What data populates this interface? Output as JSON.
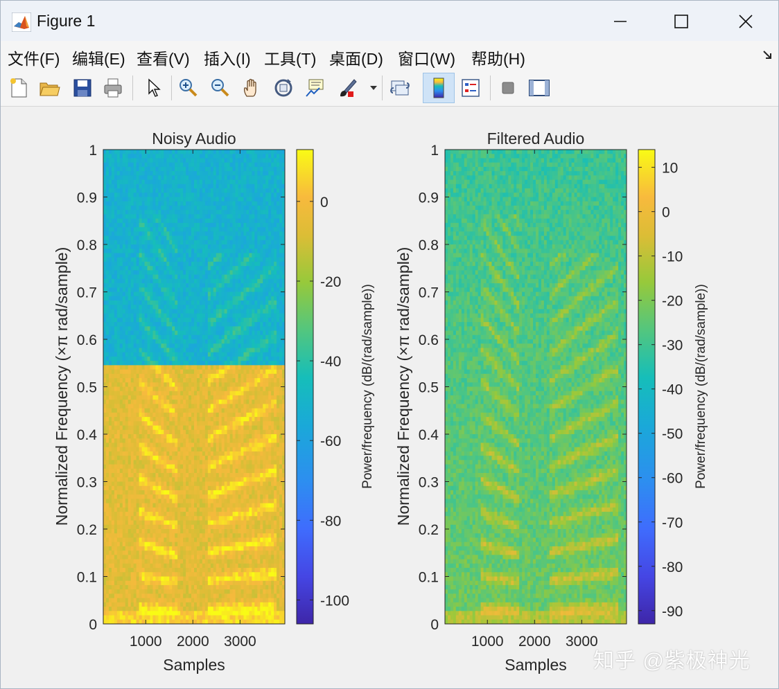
{
  "window": {
    "title": "Figure 1"
  },
  "menu": [
    "文件(F)",
    "编辑(E)",
    "查看(V)",
    "插入(I)",
    "工具(T)",
    "桌面(D)",
    "窗口(W)",
    "帮助(H)"
  ],
  "toolbar": [
    "new-file-icon",
    "open-folder-icon",
    "save-icon",
    "print-icon",
    "pointer-icon",
    "zoom-in-icon",
    "zoom-out-icon",
    "pan-hand-icon",
    "rotate-3d-icon",
    "data-cursor-icon",
    "brush-icon",
    "link-plot-icon",
    "colorbar-icon",
    "legend-icon",
    "hide-plot-tools-icon",
    "show-plot-tools-icon"
  ],
  "watermark": "知乎 @紫极神光",
  "colors": {
    "parula_dark": "#3e26a8",
    "parula_blue": "#2d8ef0",
    "parula_teal": "#16beb9",
    "parula_green": "#97c93b",
    "parula_orange": "#f8ba3d",
    "parula_yellow": "#f9fb15"
  },
  "chart_data": [
    {
      "type": "heatmap",
      "title": "Noisy Audio",
      "xlabel": "Samples",
      "ylabel": "Normalized Frequency  (×π rad/sample)",
      "colorbar_label": "Power/frequency (dB/(rad/sample))",
      "x_ticks": [
        "1000",
        "2000",
        "3000"
      ],
      "x_tick_values": [
        1000,
        2000,
        3000
      ],
      "xlim": [
        100,
        3950
      ],
      "y_ticks": [
        "0",
        "0.1",
        "0.2",
        "0.3",
        "0.4",
        "0.5",
        "0.6",
        "0.7",
        "0.8",
        "0.9",
        "1"
      ],
      "ylim": [
        0,
        1
      ],
      "colorbar_ticks": [
        "0",
        "-20",
        "-40",
        "-60",
        "-80",
        "-100"
      ],
      "colorbar_tick_values": [
        0,
        -20,
        -40,
        -60,
        -80,
        -100
      ],
      "clim": [
        -106,
        13
      ],
      "colormap": "parula",
      "noise_floor_cutoff": 0.55
    },
    {
      "type": "heatmap",
      "title": "Filtered Audio",
      "xlabel": "Samples",
      "ylabel": "Normalized Frequency  (×π rad/sample)",
      "colorbar_label": "Power/frequency (dB/(rad/sample))",
      "x_ticks": [
        "1000",
        "2000",
        "3000"
      ],
      "x_tick_values": [
        1000,
        2000,
        3000
      ],
      "xlim": [
        100,
        3950
      ],
      "y_ticks": [
        "0",
        "0.1",
        "0.2",
        "0.3",
        "0.4",
        "0.5",
        "0.6",
        "0.7",
        "0.8",
        "0.9",
        "1"
      ],
      "ylim": [
        0,
        1
      ],
      "colorbar_ticks": [
        "10",
        "0",
        "-10",
        "-20",
        "-30",
        "-40",
        "-50",
        "-60",
        "-70",
        "-80",
        "-90"
      ],
      "colorbar_tick_values": [
        10,
        0,
        -10,
        -20,
        -30,
        -40,
        -50,
        -60,
        -70,
        -80,
        -90
      ],
      "clim": [
        -93,
        14
      ],
      "colormap": "parula",
      "noise_floor_cutoff": null
    }
  ]
}
